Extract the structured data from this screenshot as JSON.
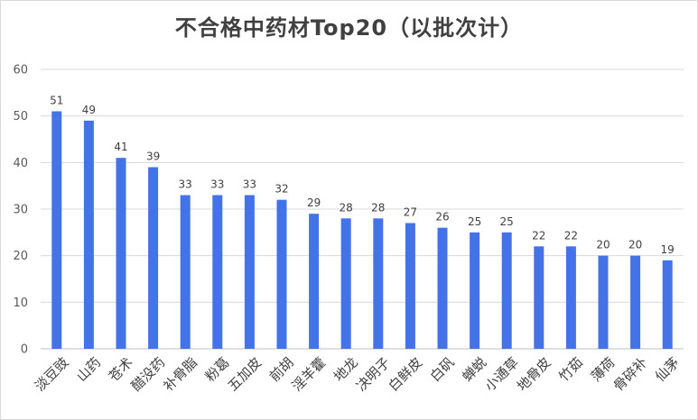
{
  "chart_data": {
    "type": "bar",
    "title": "不合格中药材Top20（以批次计）",
    "xlabel": "",
    "ylabel": "",
    "ylim": [
      0,
      60
    ],
    "yticks": [
      0,
      10,
      20,
      30,
      40,
      50,
      60
    ],
    "grid": true,
    "legend": "none",
    "bar_color": "#4472E8",
    "categories": [
      "淡豆豉",
      "山药",
      "苍术",
      "醋没药",
      "补骨脂",
      "粉葛",
      "五加皮",
      "前胡",
      "淫羊藿",
      "地龙",
      "决明子",
      "白鲜皮",
      "白矾",
      "蝉蜕",
      "小通草",
      "地骨皮",
      "竹茹",
      "薄荷",
      "骨碎补",
      "仙茅"
    ],
    "values": [
      51,
      49,
      41,
      39,
      33,
      33,
      33,
      32,
      29,
      28,
      28,
      27,
      26,
      25,
      25,
      22,
      22,
      20,
      20,
      19
    ]
  }
}
